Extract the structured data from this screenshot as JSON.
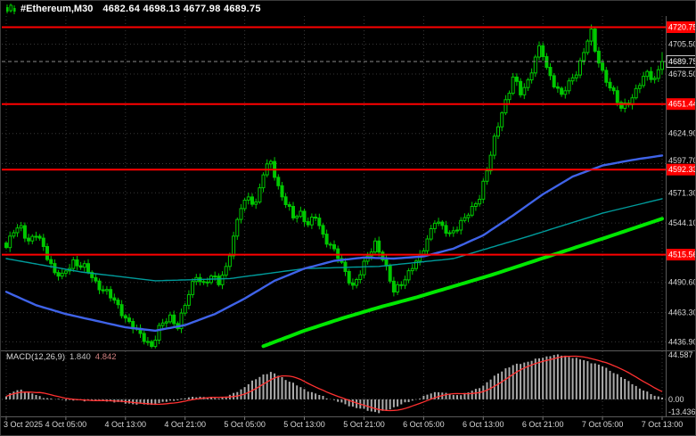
{
  "titlebar": {
    "symbol": "#Ethereum,M30",
    "ohlc": "4682.64 4698.13 4677.98 4689.75"
  },
  "colors": {
    "background": "#000000",
    "grid": "#383838",
    "candle": "#00C800",
    "ma_blue": "#3F63E8",
    "ma_teal": "#009B9B",
    "ma_green": "#00E800",
    "level": "#FF0000",
    "histogram": "#ABABAB",
    "signal": "#FF3030",
    "axis_text": "#D8D8D8",
    "title_text": "#FFFFFF"
  },
  "chart_data": {
    "type": "candlestick",
    "symbol": "#Ethereum",
    "timeframe": "M30",
    "title": "#Ethereum,M30",
    "bar_count": 177,
    "price_axis": {
      "range": [
        4430,
        4730
      ],
      "grid_labels": [
        4705.5,
        4678.5,
        4624.9,
        4597.7,
        4571.3,
        4544.1,
        4490.6,
        4463.3,
        4436.9
      ],
      "red_levels": [
        4720.75,
        4651.44,
        4592.33,
        4515.56
      ],
      "current_price": 4689.75
    },
    "x_axis": {
      "tick_interval_bars": 16,
      "labels": [
        "3 Oct 2025",
        "4 Oct 05:00",
        "4 Oct 13:00",
        "4 Oct 21:00",
        "5 Oct 05:00",
        "5 Oct 13:00",
        "5 Oct 21:00",
        "6 Oct 05:00",
        "6 Oct 13:00",
        "6 Oct 21:00",
        "7 Oct 05:00",
        "7 Oct 13:00"
      ]
    },
    "last_bar": {
      "open": 4682.64,
      "high": 4698.13,
      "low": 4677.98,
      "close": 4689.75
    },
    "close_waypoints": [
      [
        0,
        4522
      ],
      [
        2,
        4536
      ],
      [
        4,
        4541
      ],
      [
        6,
        4528
      ],
      [
        8,
        4533
      ],
      [
        10,
        4522
      ],
      [
        13,
        4500
      ],
      [
        15,
        4495
      ],
      [
        18,
        4510
      ],
      [
        21,
        4504
      ],
      [
        24,
        4490
      ],
      [
        27,
        4482
      ],
      [
        30,
        4468
      ],
      [
        33,
        4455
      ],
      [
        36,
        4442
      ],
      [
        39,
        4434
      ],
      [
        41,
        4449
      ],
      [
        44,
        4459
      ],
      [
        46,
        4452
      ],
      [
        48,
        4470
      ],
      [
        51,
        4497
      ],
      [
        53,
        4490
      ],
      [
        55,
        4495
      ],
      [
        57,
        4490
      ],
      [
        59,
        4505
      ],
      [
        61,
        4531
      ],
      [
        63,
        4558
      ],
      [
        65,
        4568
      ],
      [
        67,
        4562
      ],
      [
        69,
        4588
      ],
      [
        71,
        4600
      ],
      [
        73,
        4577
      ],
      [
        75,
        4561
      ],
      [
        77,
        4549
      ],
      [
        79,
        4554
      ],
      [
        81,
        4543
      ],
      [
        83,
        4549
      ],
      [
        85,
        4533
      ],
      [
        87,
        4525
      ],
      [
        89,
        4513
      ],
      [
        91,
        4499
      ],
      [
        93,
        4488
      ],
      [
        95,
        4499
      ],
      [
        97,
        4513
      ],
      [
        99,
        4527
      ],
      [
        101,
        4513
      ],
      [
        103,
        4491
      ],
      [
        104,
        4482
      ],
      [
        106,
        4491
      ],
      [
        108,
        4499
      ],
      [
        111,
        4513
      ],
      [
        113,
        4531
      ],
      [
        115,
        4546
      ],
      [
        117,
        4539
      ],
      [
        119,
        4535
      ],
      [
        121,
        4541
      ],
      [
        123,
        4547
      ],
      [
        125,
        4557
      ],
      [
        127,
        4569
      ],
      [
        129,
        4591
      ],
      [
        131,
        4619
      ],
      [
        133,
        4646
      ],
      [
        135,
        4663
      ],
      [
        136,
        4675
      ],
      [
        138,
        4661
      ],
      [
        140,
        4673
      ],
      [
        142,
        4693
      ],
      [
        143,
        4701
      ],
      [
        144,
        4695
      ],
      [
        145,
        4683
      ],
      [
        147,
        4671
      ],
      [
        149,
        4659
      ],
      [
        151,
        4669
      ],
      [
        153,
        4681
      ],
      [
        155,
        4699
      ],
      [
        156,
        4709
      ],
      [
        157,
        4715
      ],
      [
        158,
        4699
      ],
      [
        160,
        4681
      ],
      [
        162,
        4667
      ],
      [
        164,
        4653
      ],
      [
        165,
        4647
      ],
      [
        166,
        4651
      ],
      [
        168,
        4658
      ],
      [
        170,
        4669
      ],
      [
        172,
        4679
      ],
      [
        174,
        4675
      ],
      [
        176,
        4690
      ]
    ],
    "ma_blue_waypoints": [
      [
        0,
        4482
      ],
      [
        8,
        4470
      ],
      [
        16,
        4462
      ],
      [
        24,
        4456
      ],
      [
        32,
        4450
      ],
      [
        40,
        4447
      ],
      [
        48,
        4452
      ],
      [
        56,
        4462
      ],
      [
        64,
        4476
      ],
      [
        72,
        4492
      ],
      [
        80,
        4503
      ],
      [
        88,
        4510
      ],
      [
        96,
        4513
      ],
      [
        104,
        4512
      ],
      [
        112,
        4514
      ],
      [
        120,
        4521
      ],
      [
        128,
        4533
      ],
      [
        136,
        4551
      ],
      [
        144,
        4570
      ],
      [
        152,
        4586
      ],
      [
        160,
        4596
      ],
      [
        168,
        4601
      ],
      [
        176,
        4605
      ]
    ],
    "ma_teal_waypoints": [
      [
        0,
        4512
      ],
      [
        20,
        4500
      ],
      [
        40,
        4492
      ],
      [
        60,
        4494
      ],
      [
        80,
        4503
      ],
      [
        100,
        4505
      ],
      [
        120,
        4512
      ],
      [
        140,
        4532
      ],
      [
        160,
        4553
      ],
      [
        176,
        4566
      ]
    ],
    "ma_green_start": 69,
    "ma_green_waypoints": [
      [
        69,
        4433
      ],
      [
        80,
        4447
      ],
      [
        90,
        4458
      ],
      [
        100,
        4468
      ],
      [
        110,
        4477
      ],
      [
        120,
        4487
      ],
      [
        130,
        4497
      ],
      [
        140,
        4508
      ],
      [
        150,
        4519
      ],
      [
        160,
        4530
      ],
      [
        168,
        4539
      ],
      [
        176,
        4548
      ]
    ],
    "macd": {
      "name": "MACD(12,26,9)",
      "main_value": "1.840",
      "signal_value": "4.842",
      "current": 1.84,
      "signal_current": 4.842,
      "range": [
        -13.436,
        44.587
      ],
      "axis_labels": [
        "44.587",
        "0.00",
        "-13.436"
      ],
      "waypoints": [
        [
          0,
          3
        ],
        [
          2,
          8
        ],
        [
          4,
          10
        ],
        [
          6,
          7
        ],
        [
          9,
          3
        ],
        [
          12,
          0.5
        ],
        [
          16,
          -0.5
        ],
        [
          20,
          -1.5
        ],
        [
          24,
          -1
        ],
        [
          28,
          -2
        ],
        [
          32,
          -4
        ],
        [
          36,
          -5
        ],
        [
          39,
          -5.5
        ],
        [
          42,
          -3
        ],
        [
          45,
          -1
        ],
        [
          48,
          1
        ],
        [
          51,
          3
        ],
        [
          54,
          2
        ],
        [
          57,
          1.5
        ],
        [
          60,
          4
        ],
        [
          63,
          10
        ],
        [
          66,
          18
        ],
        [
          69,
          25
        ],
        [
          71,
          27
        ],
        [
          73,
          24
        ],
        [
          76,
          18
        ],
        [
          79,
          12
        ],
        [
          82,
          7
        ],
        [
          85,
          3
        ],
        [
          88,
          -1
        ],
        [
          91,
          -5
        ],
        [
          94,
          -8.5
        ],
        [
          97,
          -11
        ],
        [
          100,
          -13.4
        ],
        [
          102,
          -11
        ],
        [
          104,
          -8
        ],
        [
          106,
          -5
        ],
        [
          108,
          -2.5
        ],
        [
          110,
          0
        ],
        [
          112,
          3
        ],
        [
          114,
          6
        ],
        [
          116,
          8
        ],
        [
          118,
          6
        ],
        [
          120,
          4
        ],
        [
          122,
          5
        ],
        [
          124,
          7
        ],
        [
          126,
          10
        ],
        [
          128,
          14
        ],
        [
          130,
          20
        ],
        [
          132,
          26
        ],
        [
          134,
          31
        ],
        [
          136,
          34
        ],
        [
          138,
          36
        ],
        [
          140,
          38
        ],
        [
          142,
          40
        ],
        [
          144,
          42
        ],
        [
          146,
          44
        ],
        [
          148,
          44.5
        ],
        [
          150,
          43.5
        ],
        [
          152,
          42
        ],
        [
          154,
          40
        ],
        [
          156,
          38
        ],
        [
          158,
          36
        ],
        [
          160,
          33
        ],
        [
          162,
          29
        ],
        [
          164,
          25
        ],
        [
          166,
          20
        ],
        [
          168,
          16
        ],
        [
          170,
          11
        ],
        [
          172,
          7
        ],
        [
          174,
          4
        ],
        [
          176,
          1.84
        ]
      ]
    }
  }
}
